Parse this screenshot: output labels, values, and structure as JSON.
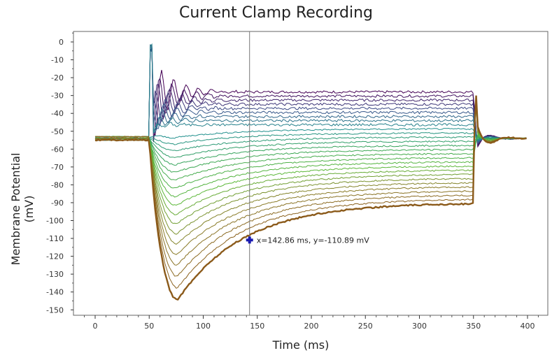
{
  "chart_data": {
    "type": "line",
    "title": "Current Clamp Recording",
    "xlabel": "Time (ms)",
    "ylabel": "Membrane Potential (mV)",
    "xlim": [
      -20,
      410
    ],
    "ylim": [
      -152,
      5
    ],
    "xticks": [
      0,
      50,
      100,
      150,
      200,
      250,
      300,
      350,
      400
    ],
    "yticks": [
      0,
      -10,
      -20,
      -30,
      -40,
      -50,
      -60,
      -70,
      -80,
      -90,
      -100,
      -110,
      -120,
      -130,
      -140,
      -150
    ],
    "grid": false,
    "step_window_ms": [
      50,
      350
    ],
    "baseline_mv": -54,
    "sweep_count": 28,
    "colormap": [
      "#440154",
      "#3b528b",
      "#21908d",
      "#3aa657",
      "#5db83a",
      "#8a7f2a",
      "#8b5a1a"
    ],
    "highlight_sweep": {
      "min_mv": -144,
      "min_t_ms": 73,
      "end_mv": -87,
      "color": "#8b4513"
    },
    "crosshair": {
      "x": 142.86,
      "y": -110.89,
      "label": "x=142.86 ms, y=-110.89 mV",
      "marker_color": "#1a1ab0",
      "line_color": "#777777"
    }
  }
}
